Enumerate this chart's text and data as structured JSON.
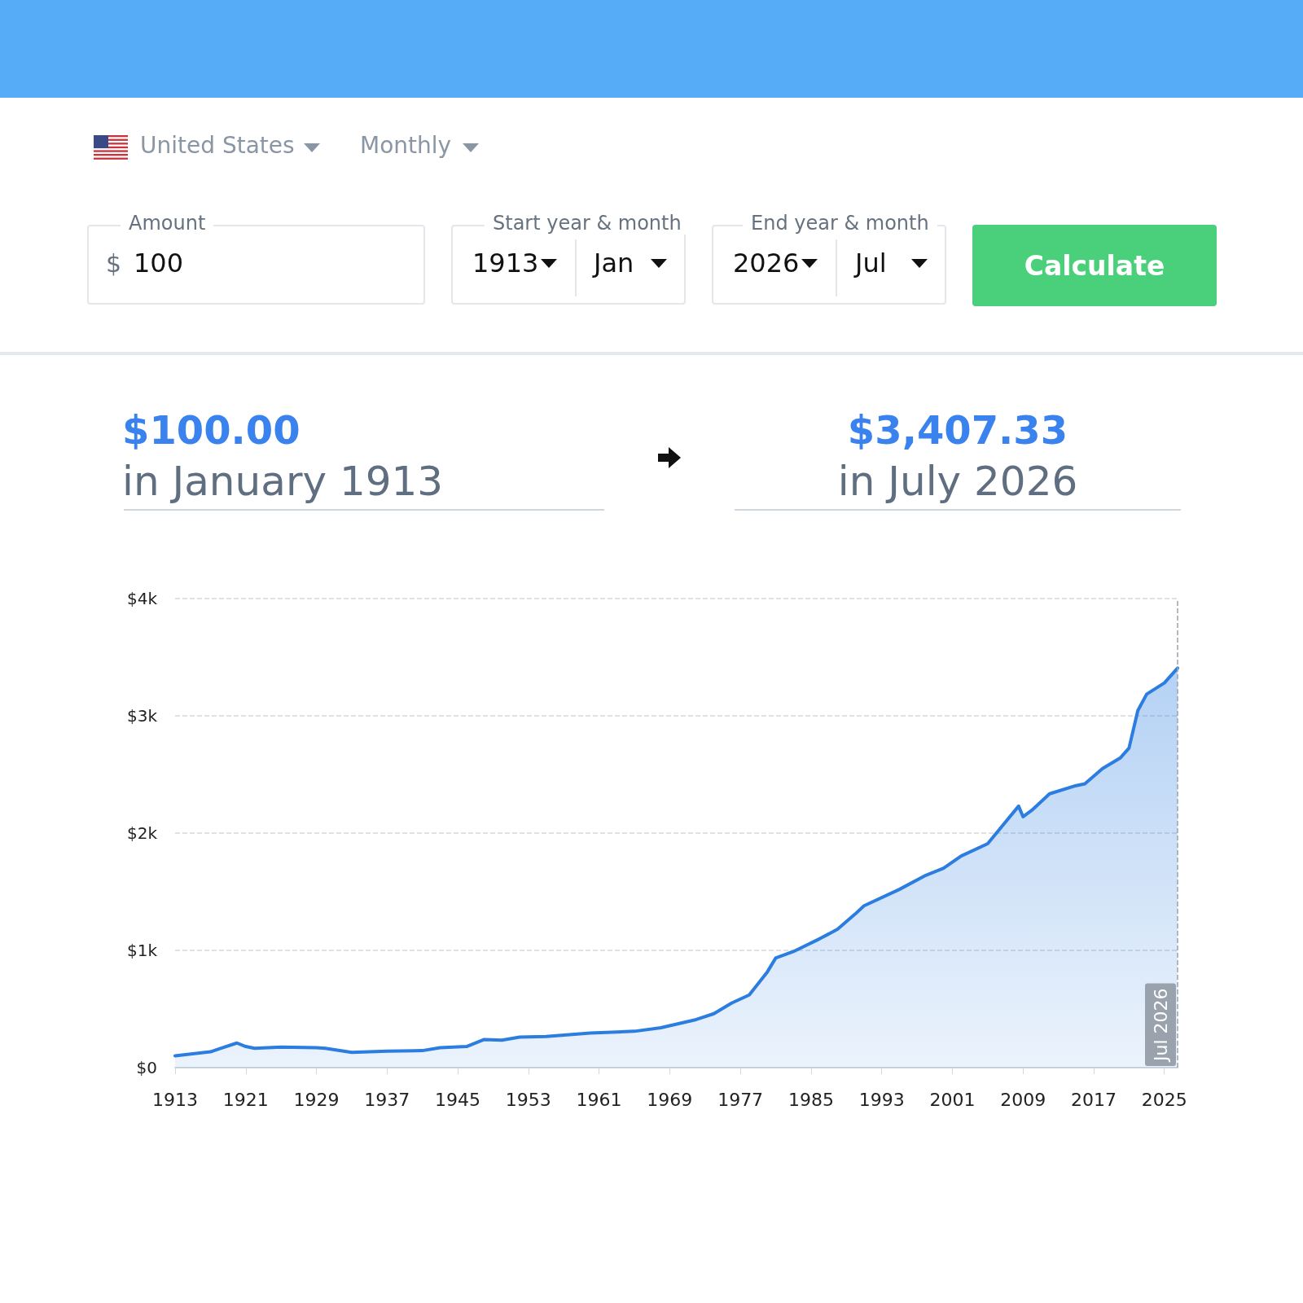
{
  "chart_data": {
    "type": "area",
    "annotations": [
      "United States",
      "Monthly",
      "Amount",
      "$",
      "100",
      "Start year & month",
      "1913",
      "Jan",
      "End year & month",
      "2026",
      "Jul",
      "Calculate",
      "$100.00",
      "in January 1913",
      "$3,407.33",
      "in July 2026"
    ],
    "x": [
      1913,
      1917,
      1918,
      1920,
      1921,
      1922,
      1925,
      1929,
      1930,
      1933,
      1937,
      1941,
      1943,
      1946,
      1948,
      1950,
      1952,
      1955,
      1960,
      1965,
      1968,
      1970,
      1972,
      1974,
      1976,
      1978,
      1980,
      1981,
      1983,
      1986,
      1988,
      1990,
      1991,
      1995,
      1998,
      2000,
      2002,
      2005,
      2008.5,
      2009,
      2010,
      2012,
      2015,
      2016,
      2018,
      2020,
      2021,
      2022,
      2023,
      2025,
      2026.5
    ],
    "series": [
      {
        "color": "#2b7de0",
        "values": [
          100,
          135,
          160,
          210,
          180,
          165,
          175,
          170,
          165,
          130,
          140,
          145,
          170,
          180,
          240,
          235,
          260,
          265,
          295,
          310,
          340,
          375,
          410,
          460,
          550,
          620,
          810,
          935,
          990,
          1100,
          1180,
          1310,
          1380,
          1520,
          1640,
          1700,
          1805,
          1910,
          2230,
          2140,
          2195,
          2335,
          2405,
          2420,
          2550,
          2640,
          2725,
          3045,
          3185,
          3280,
          3407.33
        ]
      }
    ],
    "xlim": [
      1913,
      2026.5
    ],
    "xticks": [
      1913,
      1921,
      1929,
      1937,
      1945,
      1953,
      1961,
      1969,
      1977,
      1985,
      1993,
      2001,
      2009,
      2017,
      2025
    ],
    "ylim": [
      0,
      4000
    ],
    "yticks": [
      {
        "value": 0,
        "label": "$0"
      },
      {
        "value": 1000,
        "label": "$1k"
      },
      {
        "value": 2000,
        "label": "$2k"
      },
      {
        "value": 3000,
        "label": "$3k"
      },
      {
        "value": 4000,
        "label": "$4k"
      }
    ],
    "grid": "y",
    "line_style": "solid",
    "marker": "none",
    "ref_lines": [
      {
        "axis": "x",
        "value": 2026.5,
        "label": "Jul 2026",
        "color": "#9aa3ad",
        "line_style": "dashed"
      }
    ]
  }
}
